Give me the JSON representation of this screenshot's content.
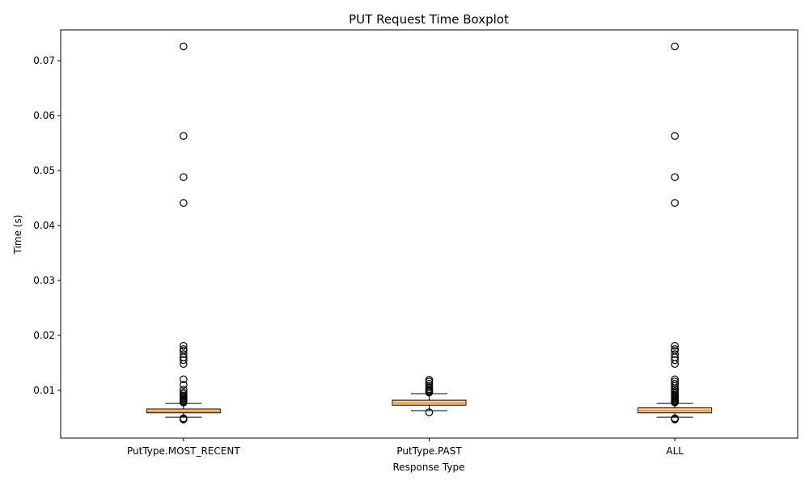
{
  "chart_data": {
    "type": "boxplot",
    "title": "PUT Request Time Boxplot",
    "xlabel": "Response Type",
    "ylabel": "Time (s)",
    "ylim": [
      0.0013,
      0.0756
    ],
    "yticks": [
      0.01,
      0.02,
      0.03,
      0.04,
      0.05,
      0.06,
      0.07
    ],
    "ytick_labels": [
      "0.01",
      "0.02",
      "0.03",
      "0.04",
      "0.05",
      "0.06",
      "0.07"
    ],
    "grid": false,
    "colors": {
      "box_fill": "#fed4a7",
      "median": "#ff7f0e",
      "stroke": "#000000"
    },
    "categories": [
      "PutType.MOST_RECENT",
      "PutType.PAST",
      "ALL"
    ],
    "boxes": [
      {
        "category": "PutType.MOST_RECENT",
        "whisker_low": 0.0051,
        "q1": 0.0059,
        "median": 0.0062,
        "q3": 0.0066,
        "whisker_high": 0.0076,
        "fliers": [
          0.0726,
          0.0563,
          0.0488,
          0.0441,
          0.0181,
          0.0175,
          0.0172,
          0.0166,
          0.016,
          0.0155,
          0.0148,
          0.012,
          0.011,
          0.0101,
          0.0096,
          0.0093,
          0.009,
          0.0088,
          0.0086,
          0.0084,
          0.0082,
          0.008,
          0.0078,
          0.0049,
          0.0048,
          0.0047
        ]
      },
      {
        "category": "PutType.PAST",
        "whisker_low": 0.0063,
        "q1": 0.0073,
        "median": 0.0077,
        "q3": 0.0082,
        "whisker_high": 0.0094,
        "fliers": [
          0.0119,
          0.0116,
          0.0112,
          0.0108,
          0.0105,
          0.0102,
          0.01,
          0.0098,
          0.0096,
          0.006
        ]
      },
      {
        "category": "ALL",
        "whisker_low": 0.0051,
        "q1": 0.0059,
        "median": 0.0063,
        "q3": 0.0068,
        "whisker_high": 0.0076,
        "fliers": [
          0.0726,
          0.0563,
          0.0488,
          0.0441,
          0.0181,
          0.0175,
          0.0172,
          0.0166,
          0.016,
          0.0155,
          0.0148,
          0.012,
          0.0116,
          0.0112,
          0.0108,
          0.0104,
          0.0101,
          0.0098,
          0.0095,
          0.0092,
          0.009,
          0.0088,
          0.0086,
          0.0084,
          0.0082,
          0.008,
          0.0078,
          0.0049,
          0.0048,
          0.0047
        ]
      }
    ]
  }
}
